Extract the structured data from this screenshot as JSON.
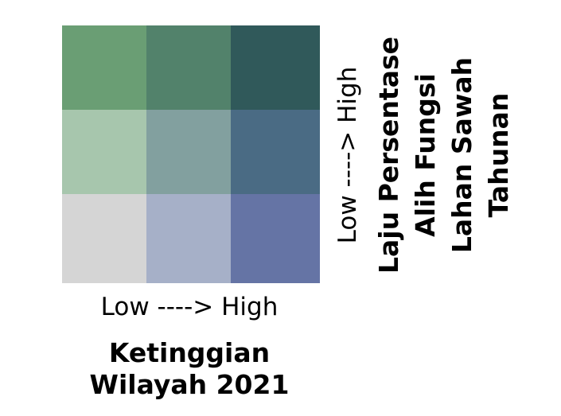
{
  "legend": {
    "grid": [
      [
        "#6a9e74",
        "#52826b",
        "#30595a"
      ],
      [
        "#a7c6ad",
        "#82a09f",
        "#4a6b84"
      ],
      [
        "#d5d5d5",
        "#a6b0c8",
        "#6574a5"
      ]
    ]
  },
  "x_axis": {
    "range_label": "Low ----> High",
    "title_lines": [
      "Ketinggian",
      "Wilayah 2021"
    ]
  },
  "y_axis": {
    "range_label": "Low ----> High",
    "title_lines": [
      "Laju Persentase",
      "Alih Fungsi",
      "Lahan Sawah",
      "Tahunan"
    ]
  }
}
